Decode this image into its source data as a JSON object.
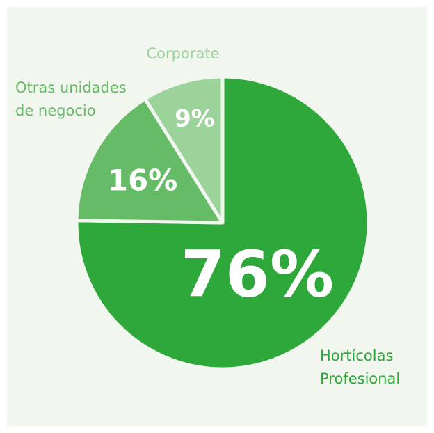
{
  "chart_data": {
    "type": "pie",
    "categories": [
      "Hortícolas\nProfesional",
      "Otras unidades\nde negocio",
      "Corporate"
    ],
    "values": [
      76,
      16,
      9
    ],
    "value_labels": [
      "76%",
      "16%",
      "9%"
    ],
    "colors": [
      "#2ea83a",
      "#66bb66",
      "#9bd39b"
    ]
  }
}
